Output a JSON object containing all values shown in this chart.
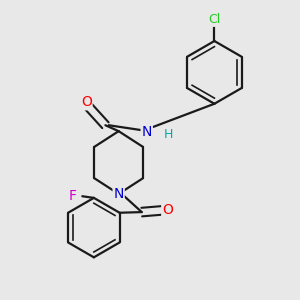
{
  "background_color": "#e8e8e8",
  "bond_color": "#1a1a1a",
  "atom_colors": {
    "O": "#ff0000",
    "N_amide": "#0000cc",
    "N_pip": "#0000cc",
    "H": "#00aaaa",
    "F": "#cc00cc",
    "Cl": "#22cc22"
  },
  "figsize": [
    3.0,
    3.0
  ],
  "dpi": 100
}
